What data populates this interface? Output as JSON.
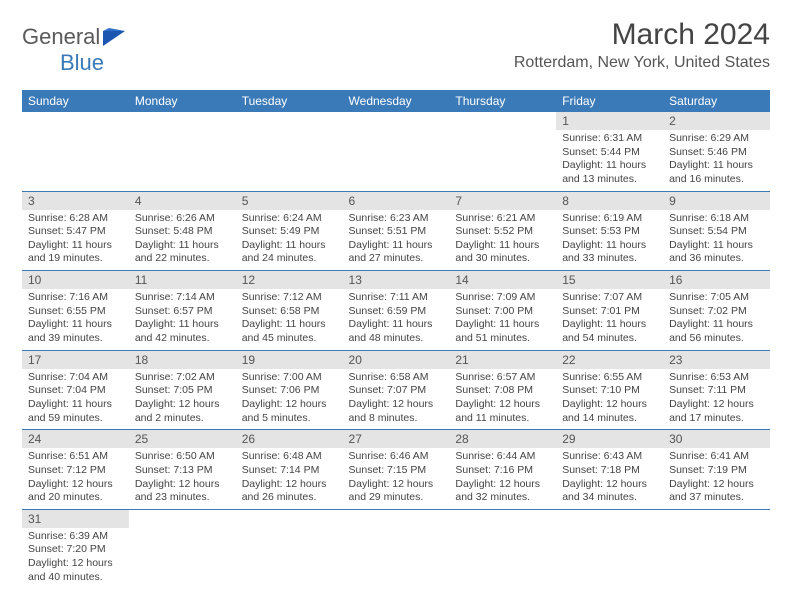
{
  "logo": {
    "part1": "General",
    "part2": "Blue"
  },
  "title": "March 2024",
  "location": "Rotterdam, New York, United States",
  "colors": {
    "header_bg": "#3b7ab8",
    "header_text": "#ffffff",
    "daynum_bg": "#e4e4e4",
    "border": "#3b7ab8",
    "logo_gray": "#5a5a5a",
    "logo_blue": "#3b7ab8"
  },
  "weekdays": [
    "Sunday",
    "Monday",
    "Tuesday",
    "Wednesday",
    "Thursday",
    "Friday",
    "Saturday"
  ],
  "grid": [
    [
      null,
      null,
      null,
      null,
      null,
      {
        "n": "1",
        "sr": "6:31 AM",
        "ss": "5:44 PM",
        "dl": "11 hours and 13 minutes."
      },
      {
        "n": "2",
        "sr": "6:29 AM",
        "ss": "5:46 PM",
        "dl": "11 hours and 16 minutes."
      }
    ],
    [
      {
        "n": "3",
        "sr": "6:28 AM",
        "ss": "5:47 PM",
        "dl": "11 hours and 19 minutes."
      },
      {
        "n": "4",
        "sr": "6:26 AM",
        "ss": "5:48 PM",
        "dl": "11 hours and 22 minutes."
      },
      {
        "n": "5",
        "sr": "6:24 AM",
        "ss": "5:49 PM",
        "dl": "11 hours and 24 minutes."
      },
      {
        "n": "6",
        "sr": "6:23 AM",
        "ss": "5:51 PM",
        "dl": "11 hours and 27 minutes."
      },
      {
        "n": "7",
        "sr": "6:21 AM",
        "ss": "5:52 PM",
        "dl": "11 hours and 30 minutes."
      },
      {
        "n": "8",
        "sr": "6:19 AM",
        "ss": "5:53 PM",
        "dl": "11 hours and 33 minutes."
      },
      {
        "n": "9",
        "sr": "6:18 AM",
        "ss": "5:54 PM",
        "dl": "11 hours and 36 minutes."
      }
    ],
    [
      {
        "n": "10",
        "sr": "7:16 AM",
        "ss": "6:55 PM",
        "dl": "11 hours and 39 minutes."
      },
      {
        "n": "11",
        "sr": "7:14 AM",
        "ss": "6:57 PM",
        "dl": "11 hours and 42 minutes."
      },
      {
        "n": "12",
        "sr": "7:12 AM",
        "ss": "6:58 PM",
        "dl": "11 hours and 45 minutes."
      },
      {
        "n": "13",
        "sr": "7:11 AM",
        "ss": "6:59 PM",
        "dl": "11 hours and 48 minutes."
      },
      {
        "n": "14",
        "sr": "7:09 AM",
        "ss": "7:00 PM",
        "dl": "11 hours and 51 minutes."
      },
      {
        "n": "15",
        "sr": "7:07 AM",
        "ss": "7:01 PM",
        "dl": "11 hours and 54 minutes."
      },
      {
        "n": "16",
        "sr": "7:05 AM",
        "ss": "7:02 PM",
        "dl": "11 hours and 56 minutes."
      }
    ],
    [
      {
        "n": "17",
        "sr": "7:04 AM",
        "ss": "7:04 PM",
        "dl": "11 hours and 59 minutes."
      },
      {
        "n": "18",
        "sr": "7:02 AM",
        "ss": "7:05 PM",
        "dl": "12 hours and 2 minutes."
      },
      {
        "n": "19",
        "sr": "7:00 AM",
        "ss": "7:06 PM",
        "dl": "12 hours and 5 minutes."
      },
      {
        "n": "20",
        "sr": "6:58 AM",
        "ss": "7:07 PM",
        "dl": "12 hours and 8 minutes."
      },
      {
        "n": "21",
        "sr": "6:57 AM",
        "ss": "7:08 PM",
        "dl": "12 hours and 11 minutes."
      },
      {
        "n": "22",
        "sr": "6:55 AM",
        "ss": "7:10 PM",
        "dl": "12 hours and 14 minutes."
      },
      {
        "n": "23",
        "sr": "6:53 AM",
        "ss": "7:11 PM",
        "dl": "12 hours and 17 minutes."
      }
    ],
    [
      {
        "n": "24",
        "sr": "6:51 AM",
        "ss": "7:12 PM",
        "dl": "12 hours and 20 minutes."
      },
      {
        "n": "25",
        "sr": "6:50 AM",
        "ss": "7:13 PM",
        "dl": "12 hours and 23 minutes."
      },
      {
        "n": "26",
        "sr": "6:48 AM",
        "ss": "7:14 PM",
        "dl": "12 hours and 26 minutes."
      },
      {
        "n": "27",
        "sr": "6:46 AM",
        "ss": "7:15 PM",
        "dl": "12 hours and 29 minutes."
      },
      {
        "n": "28",
        "sr": "6:44 AM",
        "ss": "7:16 PM",
        "dl": "12 hours and 32 minutes."
      },
      {
        "n": "29",
        "sr": "6:43 AM",
        "ss": "7:18 PM",
        "dl": "12 hours and 34 minutes."
      },
      {
        "n": "30",
        "sr": "6:41 AM",
        "ss": "7:19 PM",
        "dl": "12 hours and 37 minutes."
      }
    ],
    [
      {
        "n": "31",
        "sr": "6:39 AM",
        "ss": "7:20 PM",
        "dl": "12 hours and 40 minutes."
      },
      null,
      null,
      null,
      null,
      null,
      null
    ]
  ],
  "labels": {
    "sunrise": "Sunrise:",
    "sunset": "Sunset:",
    "daylight": "Daylight:"
  }
}
